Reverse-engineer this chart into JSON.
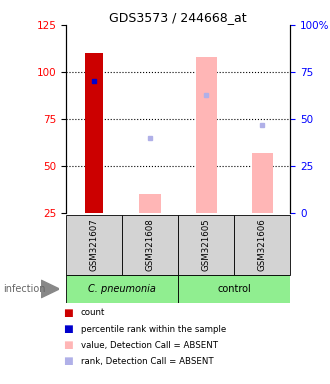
{
  "title": "GDS3573 / 244668_at",
  "samples": [
    "GSM321607",
    "GSM321608",
    "GSM321605",
    "GSM321606"
  ],
  "bar_bottom": 25,
  "ylim": [
    25,
    125
  ],
  "yticks_left": [
    25,
    50,
    75,
    100,
    125
  ],
  "right_ticks_vals": [
    25,
    50,
    75,
    100,
    125
  ],
  "right_ticks_labels": [
    "0",
    "25",
    "50",
    "75",
    "100%"
  ],
  "red_bars": [
    110,
    null,
    null,
    null
  ],
  "pink_bars": [
    null,
    35,
    108,
    57
  ],
  "blue_dots": [
    95,
    null,
    null,
    null
  ],
  "lavender_dots": [
    null,
    65,
    88,
    72
  ],
  "grid_lines": [
    100,
    75,
    50
  ],
  "legend_items": [
    {
      "color": "#cc0000",
      "label": "count"
    },
    {
      "color": "#0000cc",
      "label": "percentile rank within the sample"
    },
    {
      "color": "#ffb6b6",
      "label": "value, Detection Call = ABSENT"
    },
    {
      "color": "#b0b0e8",
      "label": "rank, Detection Call = ABSENT"
    }
  ]
}
